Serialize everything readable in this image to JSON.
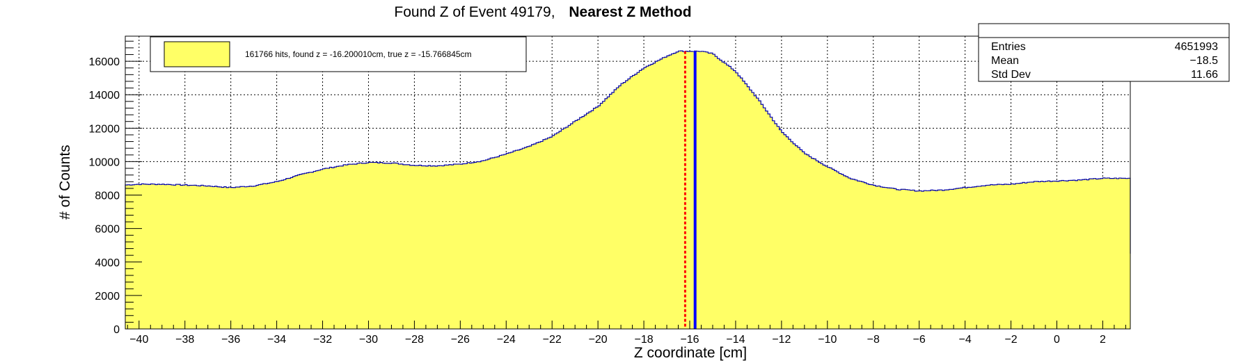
{
  "chart_data": {
    "type": "histogram",
    "title": "Found Z of Event 49179,",
    "title_bold": "Nearest Z Method",
    "xlabel": "Z coordinate [cm]",
    "ylabel": "# of Counts",
    "xlim": [
      -40.6,
      3.2
    ],
    "ylim": [
      0,
      17500
    ],
    "grid": true,
    "x_ticks": [
      -40,
      -38,
      -36,
      -34,
      -32,
      -30,
      -28,
      -26,
      -24,
      -22,
      -20,
      -18,
      -16,
      -14,
      -12,
      -10,
      -8,
      -6,
      -4,
      -2,
      0,
      2
    ],
    "y_ticks": [
      0,
      2000,
      4000,
      6000,
      8000,
      10000,
      12000,
      14000,
      16000
    ],
    "legend_position": "top-left",
    "legend_label": "161766 hits, found z = -16.200010cm, true z = -15.766845cm",
    "fill_color": "#ffff66",
    "line_color": "#0000aa",
    "found_z": -16.2,
    "true_z": -15.766845,
    "found_line_color": "#ff0000",
    "true_line_color": "#0000ff",
    "profile_x": [
      -40.6,
      -40.0,
      -39.0,
      -38.0,
      -37.0,
      -36.0,
      -35.0,
      -34.0,
      -33.0,
      -32.0,
      -31.0,
      -30.0,
      -29.0,
      -28.0,
      -27.0,
      -26.0,
      -25.0,
      -24.0,
      -23.0,
      -22.0,
      -21.0,
      -20.0,
      -19.0,
      -18.0,
      -17.0,
      -16.5,
      -16.0,
      -15.5,
      -15.0,
      -14.0,
      -13.0,
      -12.0,
      -11.0,
      -10.0,
      -9.0,
      -8.0,
      -7.0,
      -6.0,
      -5.0,
      -4.0,
      -3.0,
      -2.0,
      -1.0,
      0.0,
      1.0,
      2.0,
      3.2
    ],
    "profile_y": [
      8600,
      8650,
      8650,
      8600,
      8550,
      8450,
      8550,
      8800,
      9200,
      9550,
      9800,
      9950,
      9920,
      9780,
      9750,
      9850,
      10050,
      10450,
      10900,
      11500,
      12400,
      13300,
      14600,
      15600,
      16300,
      16600,
      16600,
      16600,
      16450,
      15400,
      13700,
      11800,
      10500,
      9700,
      9000,
      8600,
      8350,
      8250,
      8300,
      8450,
      8600,
      8650,
      8800,
      8850,
      8900,
      9000,
      9000
    ]
  },
  "stats": {
    "entries_label": "Entries",
    "entries_value": "4651993",
    "mean_label": "Mean",
    "mean_value": "−18.5",
    "stddev_label": "Std Dev",
    "stddev_value": "11.66"
  }
}
